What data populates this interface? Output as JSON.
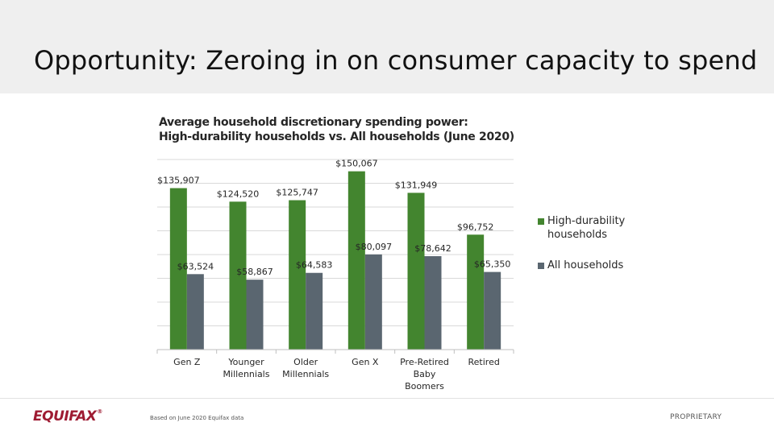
{
  "slide": {
    "title": "Opportunity: Zeroing in on consumer capacity to spend",
    "source_note": "Based on June 2020 Equifax data",
    "proprietary": "PROPRIETARY",
    "logo_text": "EQUIFAX",
    "logo_mark": "®"
  },
  "colors": {
    "high_durability": "#43852f",
    "all_households": "#5a6670",
    "gridline": "#d9d9d9",
    "axis": "#bfbfbf"
  },
  "chart_data": {
    "type": "bar",
    "title_line1": "Average household discretionary spending power:",
    "title_line2": "High-durability households vs. All households (June 2020)",
    "categories": [
      [
        "Gen Z"
      ],
      [
        "Younger",
        "Millennials"
      ],
      [
        "Older",
        "Millennials"
      ],
      [
        "Gen X"
      ],
      [
        "Pre-Retired",
        "Baby",
        "Boomers"
      ],
      [
        "Retired"
      ]
    ],
    "series": [
      {
        "name": "High-durability households",
        "name_lines": [
          "High-durability",
          "households"
        ],
        "values": [
          135907,
          124520,
          125747,
          150067,
          131949,
          96752
        ],
        "labels": [
          "$135,907",
          "$124,520",
          "$125,747",
          "$150,067",
          "$131,949",
          "$96,752"
        ]
      },
      {
        "name": "All households",
        "name_lines": [
          "All households"
        ],
        "values": [
          63524,
          58867,
          64583,
          80097,
          78642,
          65350
        ],
        "labels": [
          "$63,524",
          "$58,867",
          "$64,583",
          "$80,097",
          "$78,642",
          "$65,350"
        ]
      }
    ],
    "ylim": [
      0,
      160000
    ],
    "grid": true,
    "legend_position": "right"
  }
}
